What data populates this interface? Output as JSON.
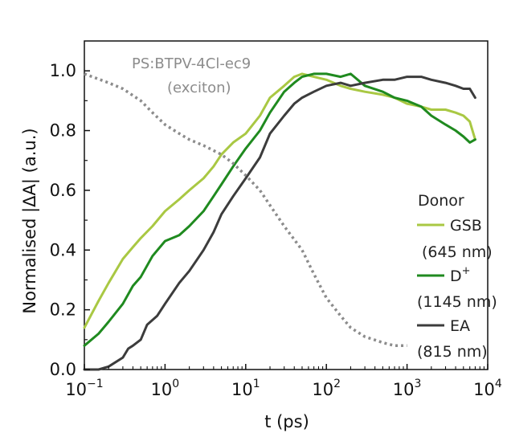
{
  "chart_data": {
    "type": "line",
    "xscale": "log",
    "xlabel": "t (ps)",
    "ylabel": "Normalised |ΔA| (a.u.)",
    "xlim": [
      0.1,
      10000
    ],
    "ylim": [
      0.0,
      1.1
    ],
    "x_ticks": [
      {
        "value": 0.1,
        "base": "10",
        "exp": "−1"
      },
      {
        "value": 1,
        "base": "10",
        "exp": "0"
      },
      {
        "value": 10,
        "base": "10",
        "exp": "1"
      },
      {
        "value": 100,
        "base": "10",
        "exp": "2"
      },
      {
        "value": 1000,
        "base": "10",
        "exp": "3"
      },
      {
        "value": 10000,
        "base": "10",
        "exp": "4"
      }
    ],
    "y_ticks": [
      "0.0",
      "0.2",
      "0.4",
      "0.6",
      "0.8",
      "1.0"
    ],
    "legend": {
      "title": "Donor",
      "entries": [
        {
          "label": "GSB",
          "sub": "(645 nm)"
        },
        {
          "label": "D",
          "sup": "+",
          "sub": "(1145 nm)"
        },
        {
          "label": "EA",
          "sub": "(815 nm)"
        }
      ]
    },
    "annotation": {
      "line1": "PS:BTPV-4Cl-ec9",
      "line2": "(exciton)"
    },
    "series": [
      {
        "name": "GSB (645 nm)",
        "color": "#a9c843",
        "style": "solid",
        "x": [
          0.1,
          0.15,
          0.2,
          0.3,
          0.4,
          0.5,
          0.7,
          1,
          1.5,
          2,
          3,
          4,
          5,
          7,
          10,
          15,
          20,
          30,
          40,
          50,
          70,
          100,
          150,
          200,
          300,
          500,
          700,
          1000,
          1500,
          2000,
          3000,
          4000,
          5000,
          6000,
          7000
        ],
        "y": [
          0.14,
          0.23,
          0.29,
          0.37,
          0.41,
          0.44,
          0.48,
          0.53,
          0.57,
          0.6,
          0.64,
          0.68,
          0.72,
          0.76,
          0.79,
          0.85,
          0.91,
          0.95,
          0.98,
          0.99,
          0.98,
          0.97,
          0.95,
          0.94,
          0.93,
          0.92,
          0.91,
          0.89,
          0.88,
          0.87,
          0.87,
          0.86,
          0.85,
          0.83,
          0.77
        ]
      },
      {
        "name": "D+ (1145 nm)",
        "color": "#1f8a1f",
        "style": "solid",
        "x": [
          0.1,
          0.15,
          0.2,
          0.3,
          0.4,
          0.5,
          0.7,
          1,
          1.5,
          2,
          3,
          4,
          5,
          7,
          10,
          15,
          20,
          30,
          40,
          50,
          70,
          100,
          150,
          200,
          300,
          500,
          700,
          1000,
          1500,
          2000,
          3000,
          4000,
          5000,
          6000,
          7000
        ],
        "y": [
          0.08,
          0.12,
          0.16,
          0.22,
          0.28,
          0.31,
          0.38,
          0.43,
          0.45,
          0.48,
          0.53,
          0.58,
          0.62,
          0.68,
          0.74,
          0.8,
          0.86,
          0.93,
          0.96,
          0.98,
          0.99,
          0.99,
          0.98,
          0.99,
          0.95,
          0.93,
          0.91,
          0.9,
          0.88,
          0.85,
          0.82,
          0.8,
          0.78,
          0.76,
          0.77
        ]
      },
      {
        "name": "EA (815 nm)",
        "color": "#3c3c3c",
        "style": "solid",
        "x": [
          0.1,
          0.15,
          0.2,
          0.3,
          0.35,
          0.4,
          0.5,
          0.6,
          0.8,
          1,
          1.5,
          2,
          3,
          4,
          5,
          7,
          10,
          15,
          20,
          30,
          40,
          50,
          70,
          100,
          150,
          200,
          300,
          500,
          700,
          1000,
          1500,
          2000,
          3000,
          4000,
          5000,
          6000,
          7000
        ],
        "y": [
          0.0,
          0.0,
          0.01,
          0.04,
          0.07,
          0.08,
          0.1,
          0.15,
          0.18,
          0.22,
          0.29,
          0.33,
          0.4,
          0.46,
          0.52,
          0.58,
          0.64,
          0.71,
          0.79,
          0.85,
          0.89,
          0.91,
          0.93,
          0.95,
          0.96,
          0.95,
          0.96,
          0.97,
          0.97,
          0.98,
          0.98,
          0.97,
          0.96,
          0.95,
          0.94,
          0.94,
          0.91
        ]
      },
      {
        "name": "PS:BTPV-4Cl-ec9 (exciton)",
        "color": "#8c8c8c",
        "style": "dotted",
        "x": [
          0.1,
          0.2,
          0.3,
          0.5,
          0.7,
          1,
          1.5,
          2,
          3,
          5,
          7,
          10,
          15,
          20,
          30,
          50,
          70,
          100,
          150,
          200,
          300,
          500,
          700,
          1000
        ],
        "y": [
          0.99,
          0.96,
          0.94,
          0.9,
          0.86,
          0.82,
          0.79,
          0.77,
          0.75,
          0.72,
          0.69,
          0.65,
          0.6,
          0.55,
          0.48,
          0.4,
          0.32,
          0.24,
          0.18,
          0.14,
          0.11,
          0.09,
          0.08,
          0.08
        ]
      }
    ]
  }
}
